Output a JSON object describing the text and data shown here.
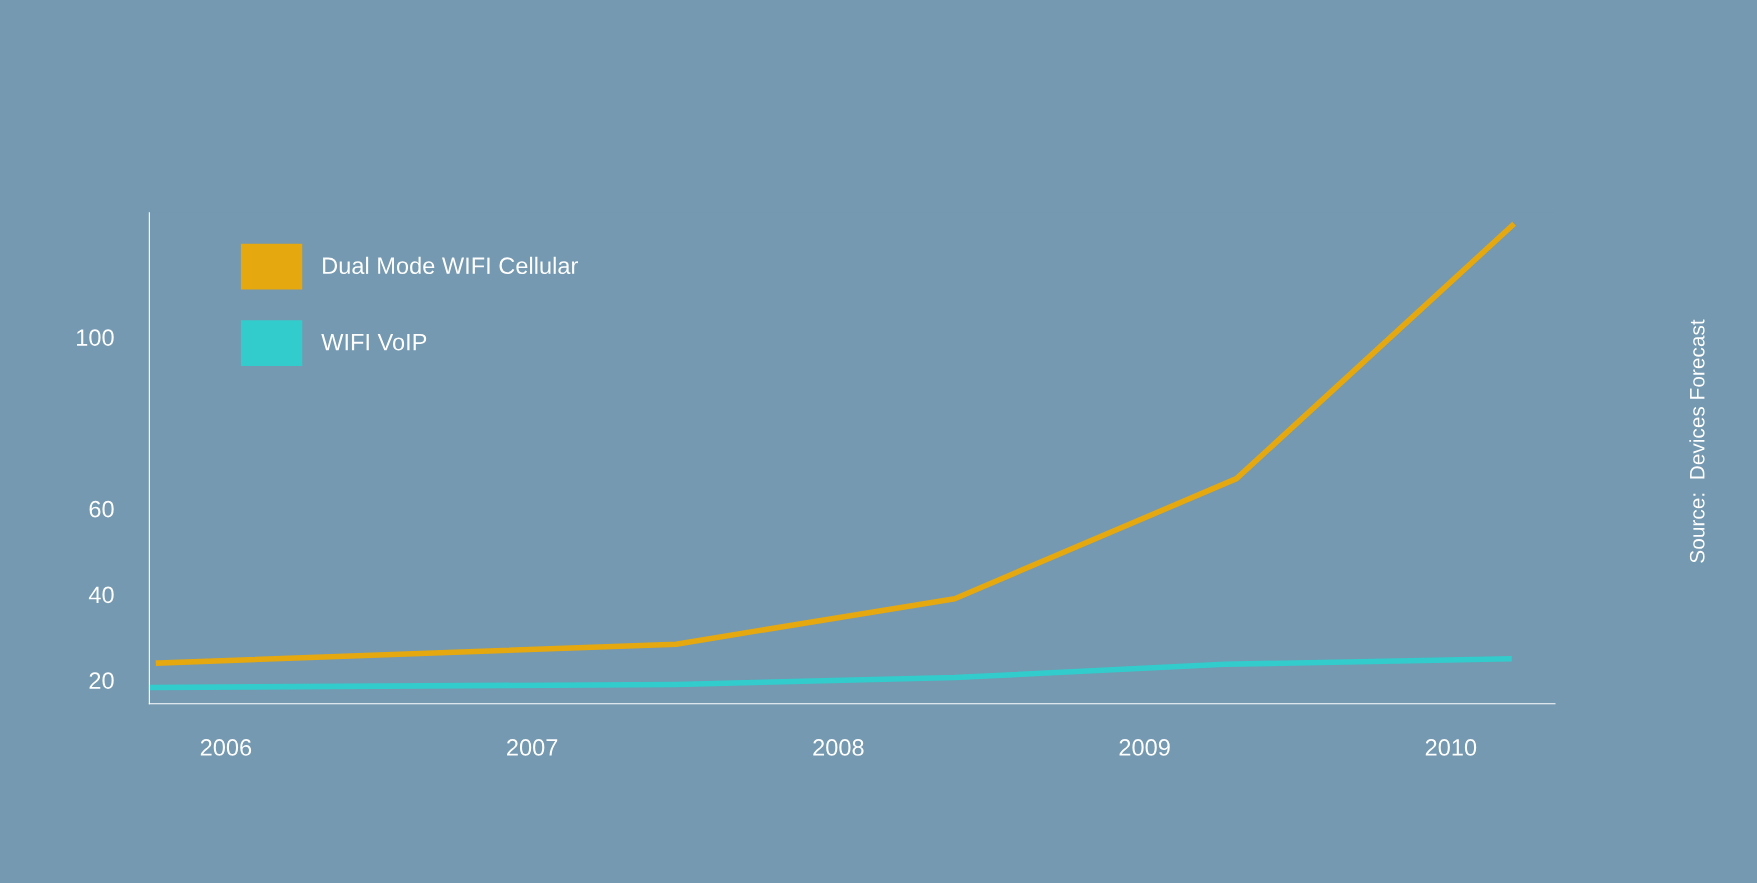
{
  "chart_data": {
    "type": "line",
    "x": [
      2005.78,
      2007.47,
      2008.38,
      2009.3,
      2010.2
    ],
    "series": [
      {
        "name": "Dual Mode WIFI Cellular",
        "color": "#e6a80f",
        "values": [
          24,
          28.4,
          39,
          67,
          126
        ]
      },
      {
        "name": "WIFI VoIP",
        "color": "#33cccc",
        "x": [
          2005.75,
          2007.47,
          2008.38,
          2009.26,
          2010.19
        ],
        "values": [
          18.3,
          19,
          20.6,
          23.7,
          25
        ]
      }
    ],
    "xlim": [
      2005.75,
      2010.34
    ],
    "xticks": [
      2006,
      2007,
      2008,
      2009,
      2010
    ],
    "ylim": [
      14.5,
      129
    ],
    "yticks": [
      20,
      40,
      60,
      100
    ],
    "grid": false,
    "legend": "top left",
    "marker": "none",
    "line_style": "solid",
    "annotations": [
      "Source:  Devices Forecast"
    ]
  }
}
